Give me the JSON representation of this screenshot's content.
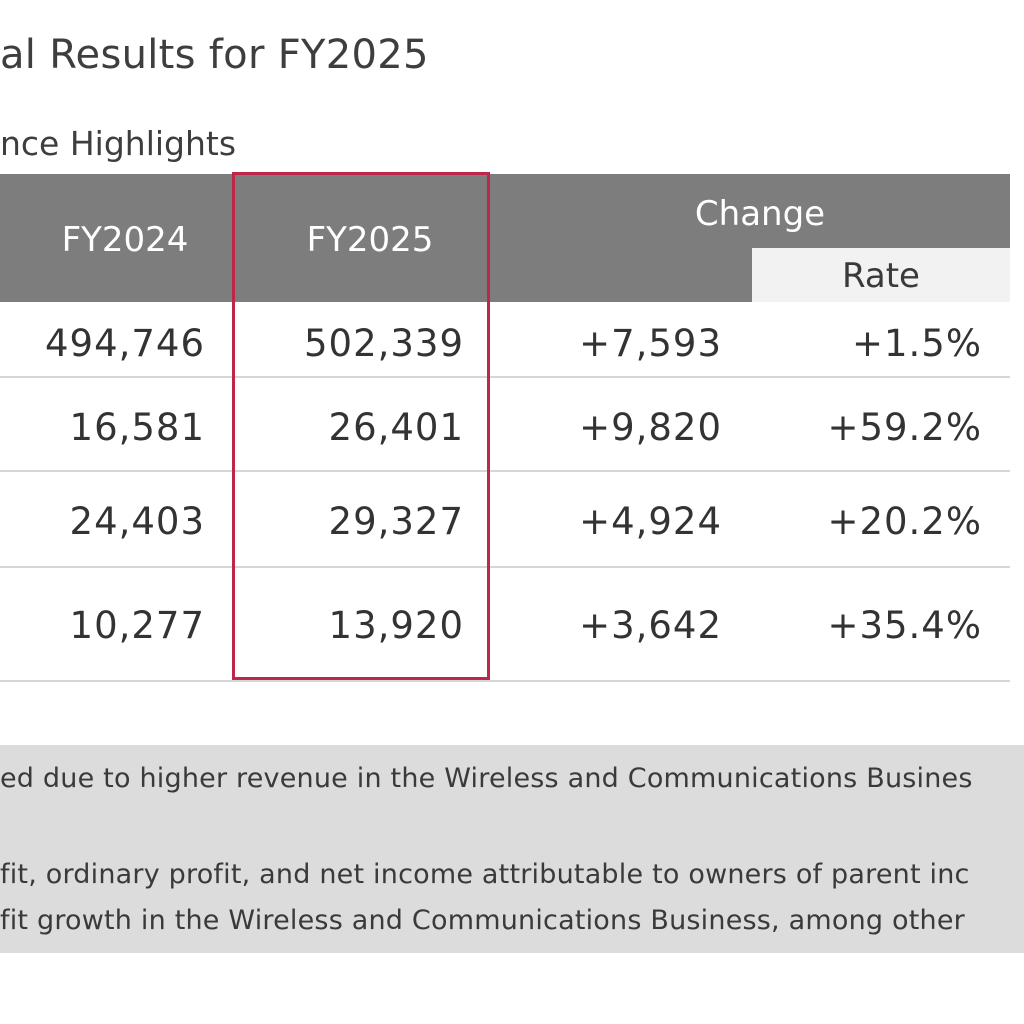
{
  "title": "al Results for FY2025",
  "subtitle": "nce Highlights",
  "table": {
    "headers": {
      "fy2024": "FY2024",
      "fy2025": "FY2025",
      "change": "Change",
      "rate": "Rate"
    },
    "rows": [
      {
        "fy2024": "494,746",
        "fy2025": "502,339",
        "change": "+7,593",
        "rate": "+1.5%"
      },
      {
        "fy2024": "16,581",
        "fy2025": "26,401",
        "change": "+9,820",
        "rate": "+59.2%"
      },
      {
        "fy2024": "24,403",
        "fy2025": "29,327",
        "change": "+4,924",
        "rate": "+20.2%"
      },
      {
        "fy2024": "10,277",
        "fy2025": "13,920",
        "change": "+3,642",
        "rate": "+35.4%"
      }
    ]
  },
  "notes": {
    "line1": "ed due to higher revenue in the Wireless and Communications Busines",
    "line2": "fit, ordinary profit, and net income attributable to owners of parent inc",
    "line3": "fit growth in the Wireless and Communications Business, among other"
  },
  "colors": {
    "header_bg": "#7d7d7d",
    "highlight_border": "#c0264a",
    "note_bg": "#dcdcdc"
  }
}
